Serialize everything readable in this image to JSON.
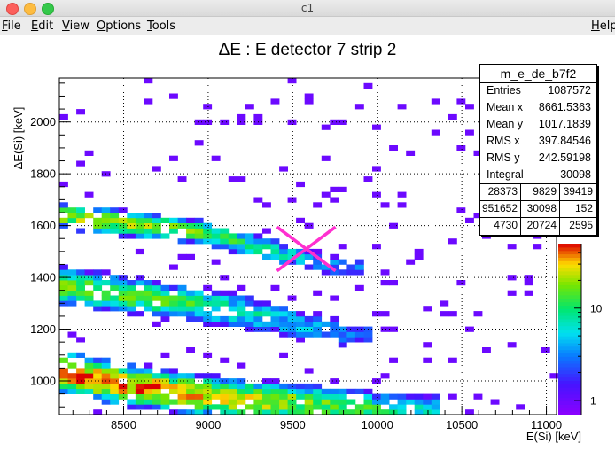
{
  "window": {
    "title": "c1"
  },
  "menu": {
    "file": {
      "u": "F",
      "rest": "ile"
    },
    "edit": {
      "u": "E",
      "rest": "dit"
    },
    "view": {
      "u": "V",
      "rest": "iew"
    },
    "options": {
      "u": "O",
      "rest": "ptions"
    },
    "tools": {
      "u": "T",
      "rest": "ools"
    },
    "help": {
      "u": "H",
      "rest": "elp"
    }
  },
  "stats": {
    "name": "m_e_de_b7f2",
    "rows": [
      {
        "label": "Entries",
        "value": "1087572"
      },
      {
        "label": "Mean x",
        "value": "8661.5363"
      },
      {
        "label": "Mean y",
        "value": "1017.1839"
      },
      {
        "label": "RMS x",
        "value": "397.84546"
      },
      {
        "label": "RMS y",
        "value": "242.59198"
      },
      {
        "label": "Integral",
        "value": "30098"
      }
    ],
    "grid": [
      [
        "28373",
        "9829",
        "39419"
      ],
      [
        "951652",
        "30098",
        "152"
      ],
      [
        "4730",
        "20724",
        "2595"
      ]
    ]
  },
  "colors": {
    "marker": "#ff2fd0",
    "stat_border": "#000000"
  },
  "chart_data": {
    "type": "heatmap",
    "title": "ΔE : E detector 7 strip 2",
    "xlabel": "E(Si) [keV]",
    "ylabel": "ΔE(Si) [keV]",
    "xlim": [
      8120,
      11060
    ],
    "ylim": [
      870,
      2170
    ],
    "x_ticks": [
      8500,
      9000,
      9500,
      10000,
      10500,
      11000
    ],
    "y_ticks": [
      1000,
      1200,
      1400,
      1600,
      1800,
      2000
    ],
    "grid": true,
    "z_scale": "log",
    "z_range": [
      0.7,
      50
    ],
    "z_ticks": [
      1,
      10
    ],
    "palette": "rainbow (purple-blue-cyan-green-yellow-red)",
    "bin_size_x": 50,
    "bin_size_y": 20,
    "marker": {
      "shape": "X",
      "x": 9580,
      "y": 1510
    },
    "bands": [
      {
        "name": "",
        "x": [
          8120,
          9000,
          9400,
          9750
        ],
        "y_center": [
          1640,
          1570,
          1500,
          1440
        ],
        "half_width": 30,
        "peak": 25
      },
      {
        "name": "",
        "x": [
          8120,
          9200,
          9800
        ],
        "y_center": [
          1370,
          1270,
          1180
        ],
        "half_width": 45,
        "peak": 18
      },
      {
        "name": "",
        "x": [
          8120,
          8500,
          9000,
          9700,
          10200
        ],
        "y_center": [
          1040,
          985,
          940,
          905,
          885
        ],
        "half_width": 45,
        "peak": 50
      }
    ]
  }
}
